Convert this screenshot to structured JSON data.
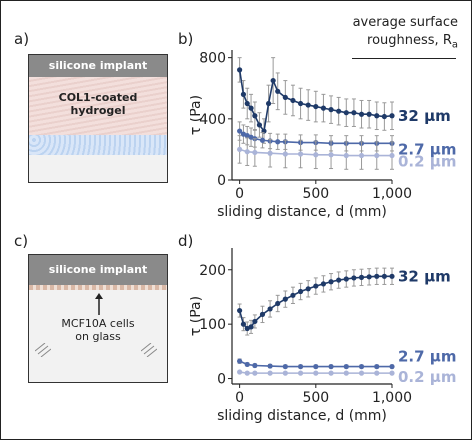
{
  "panels": {
    "a": "a)",
    "b": "b)",
    "c": "c)",
    "d": "d)"
  },
  "schematic_a": {
    "implant": "silicone implant",
    "hydrogel": "COL1-coated\nhydrogel"
  },
  "schematic_c": {
    "implant": "silicone implant",
    "cells": "MCF10A cells\non glass"
  },
  "legend": {
    "title_line1": "average surface",
    "title_line2": "roughness, R",
    "title_sub": "a"
  },
  "colors": {
    "dark": "#1f3a68",
    "mid": "#4e69a8",
    "light": "#aab4d8"
  },
  "chart_data": [
    {
      "type": "scatter",
      "xlabel": "sliding distance, d (mm)",
      "ylabel": "τ (Pa)",
      "xticks": [
        "0",
        "500",
        "1,000"
      ],
      "yticks": [
        "0",
        "400",
        "800"
      ],
      "xlim": [
        -50,
        1000
      ],
      "ylim": [
        0,
        850
      ],
      "series": [
        {
          "name": "32 μm",
          "color": "#1f3a68",
          "x": [
            0,
            25,
            50,
            75,
            100,
            130,
            160,
            190,
            220,
            250,
            300,
            350,
            400,
            450,
            500,
            550,
            600,
            650,
            700,
            750,
            800,
            850,
            900,
            950,
            1000
          ],
          "y": [
            720,
            560,
            500,
            470,
            420,
            360,
            320,
            500,
            650,
            580,
            540,
            520,
            500,
            490,
            480,
            470,
            460,
            450,
            440,
            440,
            430,
            430,
            420,
            415,
            420
          ],
          "err": [
            80,
            90,
            100,
            90,
            90,
            80,
            80,
            120,
            150,
            120,
            110,
            100,
            100,
            100,
            100,
            90,
            90,
            90,
            90,
            90,
            90,
            90,
            90,
            90,
            90
          ]
        },
        {
          "name": "2.7 μm",
          "color": "#4e69a8",
          "x": [
            0,
            25,
            50,
            75,
            100,
            150,
            200,
            250,
            300,
            400,
            500,
            600,
            700,
            800,
            900,
            1000
          ],
          "y": [
            320,
            300,
            290,
            280,
            270,
            260,
            255,
            250,
            250,
            245,
            245,
            240,
            240,
            240,
            240,
            240
          ],
          "err": [
            60,
            60,
            60,
            60,
            55,
            50,
            50,
            50,
            50,
            50,
            50,
            50,
            50,
            50,
            50,
            50
          ]
        },
        {
          "name": "0.2 μm",
          "color": "#aab4d8",
          "x": [
            0,
            50,
            100,
            200,
            300,
            400,
            500,
            600,
            700,
            800,
            900,
            1000
          ],
          "y": [
            200,
            185,
            180,
            175,
            170,
            170,
            165,
            165,
            160,
            160,
            160,
            160
          ],
          "err": [
            90,
            90,
            90,
            90,
            90,
            90,
            90,
            90,
            90,
            90,
            90,
            90
          ]
        }
      ]
    },
    {
      "type": "scatter",
      "xlabel": "sliding distance, d (mm)",
      "ylabel": "τ (Pa)",
      "xticks": [
        "0",
        "500",
        "1,000"
      ],
      "yticks": [
        "0",
        "100",
        "200"
      ],
      "xlim": [
        -50,
        1000
      ],
      "ylim": [
        -10,
        240
      ],
      "series": [
        {
          "name": "32 μm",
          "color": "#1f3a68",
          "x": [
            0,
            25,
            50,
            75,
            100,
            150,
            200,
            250,
            300,
            350,
            400,
            450,
            500,
            550,
            600,
            650,
            700,
            750,
            800,
            850,
            900,
            950,
            1000
          ],
          "y": [
            125,
            100,
            92,
            95,
            105,
            118,
            128,
            138,
            146,
            153,
            160,
            165,
            170,
            174,
            178,
            181,
            183,
            185,
            186,
            187,
            188,
            188,
            188
          ],
          "err": [
            12,
            12,
            12,
            12,
            12,
            15,
            15,
            15,
            15,
            15,
            15,
            15,
            15,
            15,
            15,
            15,
            15,
            15,
            15,
            15,
            15,
            15,
            15
          ]
        },
        {
          "name": "2.7 μm",
          "color": "#4e69a8",
          "x": [
            0,
            50,
            100,
            200,
            300,
            400,
            500,
            600,
            700,
            800,
            900,
            1000
          ],
          "y": [
            32,
            26,
            24,
            23,
            22,
            22,
            22,
            22,
            22,
            22,
            22,
            22
          ],
          "err": [
            4,
            3,
            3,
            3,
            3,
            3,
            3,
            3,
            3,
            3,
            3,
            3
          ]
        },
        {
          "name": "0.2 μm",
          "color": "#aab4d8",
          "x": [
            0,
            50,
            100,
            200,
            300,
            400,
            500,
            600,
            700,
            800,
            900,
            1000
          ],
          "y": [
            12,
            10,
            10,
            10,
            10,
            10,
            10,
            10,
            10,
            10,
            10,
            10
          ],
          "err": [
            2,
            2,
            2,
            2,
            2,
            2,
            2,
            2,
            2,
            2,
            2,
            2
          ]
        }
      ]
    }
  ]
}
